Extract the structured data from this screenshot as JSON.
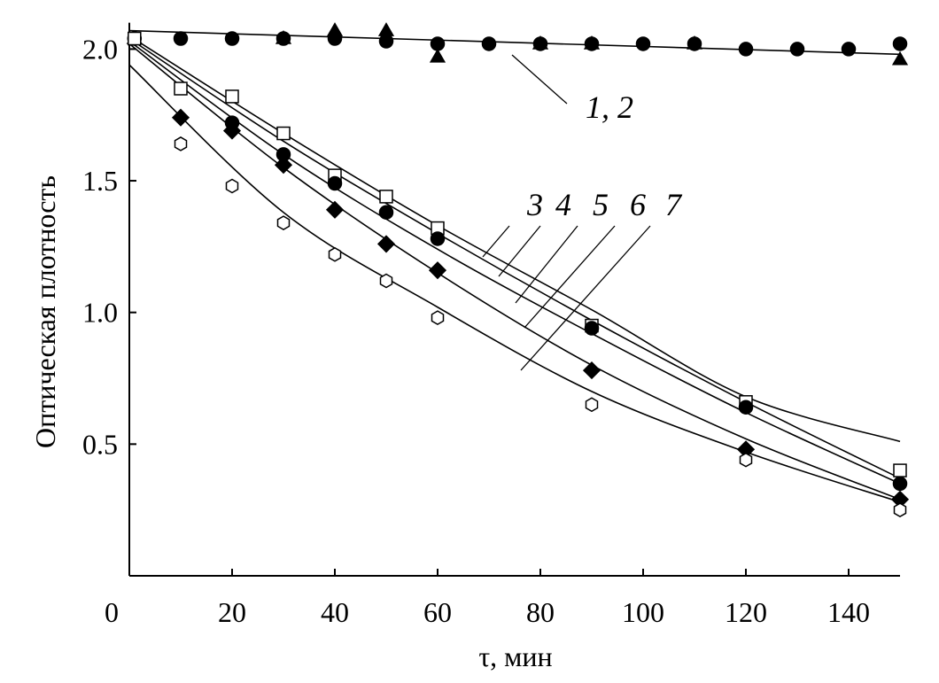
{
  "chart_data": {
    "type": "scatter",
    "x_label": "τ, мин",
    "y_label": "Оптическая плотность",
    "xlim": [
      0,
      150
    ],
    "ylim": [
      0,
      2.1
    ],
    "xticks": [
      0,
      20,
      40,
      60,
      80,
      100,
      120,
      140
    ],
    "yticks": [
      {
        "value": 0.5,
        "label": "0.5"
      },
      {
        "value": 1,
        "label": "1.0"
      },
      {
        "value": 1.5,
        "label": "1.5"
      },
      {
        "value": 2,
        "label": "2.0"
      }
    ],
    "color": "#000000",
    "series": [
      {
        "marker": "circle",
        "filled": true,
        "x": [
          1,
          10,
          20,
          30,
          40,
          50,
          60,
          70,
          80,
          90,
          100,
          110,
          120,
          130,
          140,
          150
        ],
        "values": [
          2.04,
          2.04,
          2.04,
          2.04,
          2.04,
          2.03,
          2.02,
          2.02,
          2.02,
          2.02,
          2.02,
          2.02,
          2.0,
          2.0,
          2.0,
          2.02
        ]
      },
      {
        "marker": "triangle",
        "filled": true,
        "x": [
          1,
          30,
          40,
          50,
          60,
          80,
          90,
          110,
          150
        ],
        "values": [
          2.04,
          2.04,
          2.07,
          2.07,
          1.97,
          2.02,
          2.02,
          2.02,
          1.96
        ]
      },
      {
        "marker": "square",
        "filled": false,
        "x": [
          1,
          10,
          20,
          30,
          40,
          50,
          60,
          90,
          120,
          150
        ],
        "values": [
          2.04,
          1.85,
          1.82,
          1.68,
          1.52,
          1.44,
          1.32,
          0.95,
          0.66,
          0.4
        ]
      },
      {
        "marker": "circle",
        "filled": true,
        "x": [
          20,
          30,
          40,
          50,
          60,
          90,
          120,
          150
        ],
        "values": [
          1.72,
          1.6,
          1.49,
          1.38,
          1.28,
          0.94,
          0.64,
          0.35
        ]
      },
      {
        "marker": "diamond",
        "filled": true,
        "x": [
          10,
          20,
          30,
          40,
          50,
          60,
          90,
          120,
          150
        ],
        "values": [
          1.74,
          1.69,
          1.56,
          1.39,
          1.26,
          1.16,
          0.78,
          0.48,
          0.29
        ]
      },
      {
        "marker": "hexagon",
        "filled": false,
        "x": [
          10,
          20,
          30,
          40,
          50,
          60,
          90,
          120,
          150
        ],
        "values": [
          1.64,
          1.48,
          1.34,
          1.22,
          1.12,
          0.98,
          0.65,
          0.44,
          0.25
        ]
      }
    ],
    "lines": [
      {
        "label": "1, 2",
        "x": [
          0,
          150
        ],
        "values": [
          2.07,
          1.98
        ]
      },
      {
        "label": "3",
        "x": [
          0,
          30,
          60,
          90,
          120,
          150
        ],
        "values": [
          2.05,
          1.68,
          1.33,
          1.01,
          0.68,
          0.51
        ]
      },
      {
        "label": "4",
        "x": [
          0,
          30,
          60,
          90,
          120,
          150
        ],
        "values": [
          2.04,
          1.65,
          1.3,
          0.97,
          0.66,
          0.37
        ]
      },
      {
        "label": "5",
        "x": [
          0,
          30,
          60,
          90,
          120,
          150
        ],
        "values": [
          2.03,
          1.6,
          1.24,
          0.92,
          0.62,
          0.35
        ]
      },
      {
        "label": "6",
        "x": [
          0,
          30,
          60,
          90,
          120,
          150
        ],
        "values": [
          2.02,
          1.55,
          1.15,
          0.8,
          0.52,
          0.29
        ]
      },
      {
        "label": "7",
        "x": [
          0,
          30,
          60,
          90,
          120,
          150
        ],
        "values": [
          1.94,
          1.38,
          1.02,
          0.7,
          0.47,
          0.28
        ]
      }
    ]
  }
}
